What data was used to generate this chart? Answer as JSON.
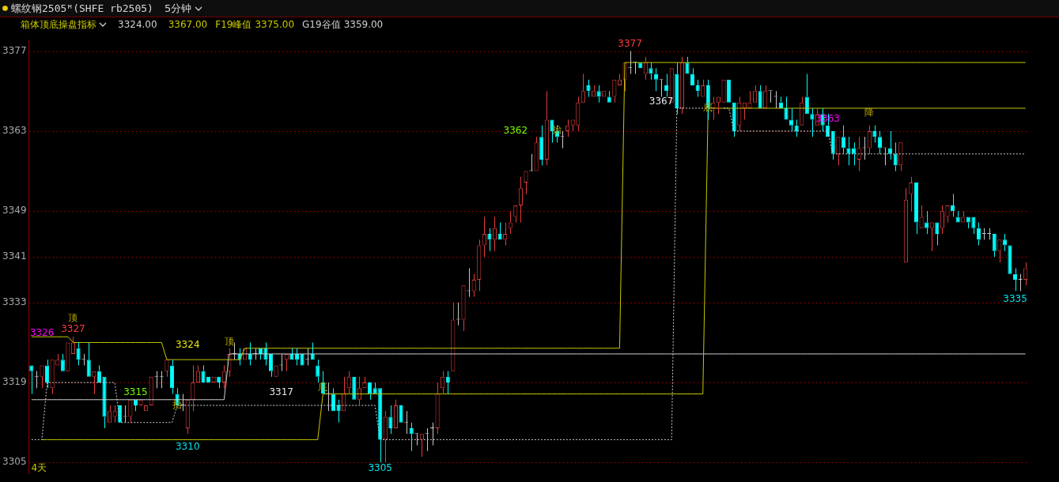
{
  "chart_data": {
    "type": "candlestick",
    "title": "螺纹钢2505ᴹ(SHFE rb2505)",
    "subtitle": "5分钟",
    "legend_title": "箱体顶底操盘指标",
    "legend": "top left",
    "categories": [
      null,
      null,
      null,
      null,
      null,
      null,
      null,
      null,
      null,
      null,
      null,
      null,
      null,
      null,
      null,
      null,
      null,
      null,
      null,
      null,
      null,
      null,
      null,
      null,
      null,
      null,
      null,
      null,
      null,
      null,
      null,
      null,
      null,
      null,
      null,
      null,
      null,
      null,
      null,
      null,
      null,
      null,
      null,
      null,
      null,
      null,
      null,
      null,
      null,
      null,
      null,
      null,
      null,
      null,
      null,
      null,
      null,
      null,
      null,
      null,
      null,
      null,
      null,
      null,
      null,
      null,
      null,
      null,
      null,
      null,
      null,
      null,
      null,
      null,
      null,
      null,
      null,
      null,
      null,
      null,
      null,
      null,
      null,
      null,
      null,
      null,
      null,
      null,
      null,
      null,
      null,
      null,
      null,
      null,
      null,
      null,
      null,
      null,
      null,
      null,
      null,
      null,
      null,
      null,
      null,
      null,
      null,
      null,
      null,
      null,
      null,
      null,
      null,
      null,
      null,
      null,
      null,
      null,
      null,
      null,
      null,
      null,
      null,
      null,
      null,
      null,
      null,
      null,
      null,
      null,
      null,
      null,
      null,
      null,
      null,
      null,
      null,
      null,
      null,
      null,
      null,
      null,
      null,
      null,
      null,
      null,
      null,
      null,
      null,
      null,
      null,
      null,
      null,
      null,
      null,
      null,
      null,
      null,
      null,
      null,
      null,
      null,
      null,
      null,
      null,
      null,
      null,
      null,
      null,
      null,
      null,
      null,
      null,
      null,
      null,
      null,
      null,
      null,
      null,
      null,
      null,
      null,
      null,
      null,
      null,
      null,
      null,
      null,
      null,
      null,
      null,
      null
    ],
    "ohlc": [
      [
        3322,
        3322,
        3317,
        3321
      ],
      [
        3320,
        3321,
        3318,
        3320
      ],
      [
        3320,
        3322,
        3318,
        3322
      ],
      [
        3322,
        3323,
        3318,
        3319
      ],
      [
        3318,
        3323,
        3317,
        3323
      ],
      [
        3322,
        3324,
        3322,
        3323
      ],
      [
        3323,
        3324,
        3321,
        3321
      ],
      [
        3321,
        3326,
        3321,
        3326
      ],
      [
        3324,
        3327,
        3324,
        3326
      ],
      [
        3325,
        3326,
        3322,
        3323
      ],
      [
        3323,
        3324,
        3322,
        3323
      ],
      [
        3323,
        3326,
        3320,
        3320
      ],
      [
        3320,
        3321,
        3317,
        3321
      ],
      [
        3321,
        3322,
        3319,
        3319
      ],
      [
        3320,
        3320,
        3311,
        3313
      ],
      [
        3312,
        3315,
        3312,
        3314
      ],
      [
        3313,
        3315,
        3312,
        3314
      ],
      [
        3315,
        3315,
        3312,
        3312
      ],
      [
        3313,
        3315,
        3312,
        3313
      ],
      [
        3313,
        3316,
        3312,
        3316
      ],
      [
        3316,
        3316,
        3314,
        3315
      ],
      [
        3315,
        3316,
        3315,
        3316
      ],
      [
        3314,
        3315,
        3314,
        3315
      ],
      [
        3315,
        3320,
        3315,
        3320
      ],
      [
        3320,
        3321,
        3318,
        3320
      ],
      [
        3320,
        3321,
        3318,
        3320
      ],
      [
        3321,
        3323,
        3320,
        3323
      ],
      [
        3322,
        3323,
        3317,
        3318
      ],
      [
        3317,
        3318,
        3315,
        3315
      ],
      [
        3315,
        3317,
        3314,
        3315
      ],
      [
        3311,
        3316,
        3310,
        3316
      ],
      [
        3316,
        3322,
        3314,
        3319
      ],
      [
        3319,
        3322,
        3319,
        3321
      ],
      [
        3321,
        3322,
        3319,
        3319
      ],
      [
        3320,
        3320,
        3319,
        3319
      ],
      [
        3319,
        3320,
        3319,
        3320
      ],
      [
        3320,
        3320,
        3318,
        3319
      ],
      [
        3319,
        3322,
        3318,
        3321
      ],
      [
        3321,
        3325,
        3320,
        3324
      ],
      [
        3324,
        3326,
        3323,
        3324
      ],
      [
        3324,
        3325,
        3322,
        3323
      ],
      [
        3323,
        3325,
        3323,
        3325
      ],
      [
        3324,
        3326,
        3322,
        3323
      ],
      [
        3324,
        3325,
        3323,
        3324
      ],
      [
        3325,
        3325,
        3323,
        3324
      ],
      [
        3325,
        3326,
        3322,
        3323
      ],
      [
        3324,
        3324,
        3320,
        3321
      ],
      [
        3320,
        3322,
        3320,
        3322
      ],
      [
        3322,
        3324,
        3321,
        3322
      ],
      [
        3323,
        3324,
        3321,
        3324
      ],
      [
        3324,
        3325,
        3323,
        3323
      ],
      [
        3324,
        3325,
        3322,
        3323
      ],
      [
        3324,
        3324,
        3322,
        3322
      ],
      [
        3323,
        3325,
        3322,
        3323
      ],
      [
        3324,
        3326,
        3323,
        3323
      ],
      [
        3322,
        3323,
        3319,
        3320
      ],
      [
        3319,
        3321,
        3317,
        3317
      ],
      [
        3317,
        3319,
        3314,
        3317
      ],
      [
        3317,
        3318,
        3314,
        3314
      ],
      [
        3315,
        3316,
        3312,
        3314
      ],
      [
        3314,
        3320,
        3314,
        3317
      ],
      [
        3318,
        3321,
        3317,
        3320
      ],
      [
        3320,
        3320,
        3316,
        3316
      ],
      [
        3316,
        3320,
        3315,
        3318
      ],
      [
        3318,
        3320,
        3318,
        3319
      ],
      [
        3319,
        3319,
        3316,
        3317
      ],
      [
        3318,
        3319,
        3317,
        3317
      ],
      [
        3318,
        3318,
        3305,
        3309
      ],
      [
        3309,
        3314,
        3305,
        3313
      ],
      [
        3313,
        3315,
        3310,
        3311
      ],
      [
        3311,
        3316,
        3311,
        3315
      ],
      [
        3315,
        3315,
        3312,
        3312
      ],
      [
        3312,
        3314,
        3310,
        3312
      ],
      [
        3311,
        3312,
        3307,
        3310
      ],
      [
        3310,
        3310,
        3308,
        3310
      ],
      [
        3309,
        3310,
        3306,
        3310
      ],
      [
        3310,
        3311,
        3307,
        3310
      ],
      [
        3311,
        3312,
        3308,
        3311
      ],
      [
        3311,
        3319,
        3310,
        3317
      ],
      [
        3318,
        3321,
        3317,
        3320
      ],
      [
        3320,
        3321,
        3317,
        3319
      ],
      [
        3321,
        3333,
        3321,
        3330
      ],
      [
        3330,
        3333,
        3329,
        3330
      ],
      [
        3330,
        3336,
        3328,
        3336
      ],
      [
        3335,
        3339,
        3334,
        3335
      ],
      [
        3335,
        3338,
        3334,
        3337
      ],
      [
        3337,
        3344,
        3335,
        3343
      ],
      [
        3343,
        3348,
        3341,
        3345
      ],
      [
        3345,
        3346,
        3342,
        3344
      ],
      [
        3344,
        3348,
        3342,
        3346
      ],
      [
        3345,
        3347,
        3344,
        3344
      ],
      [
        3344,
        3347,
        3343,
        3345
      ],
      [
        3346,
        3349,
        3345,
        3347
      ],
      [
        3348,
        3350,
        3347,
        3350
      ],
      [
        3350,
        3355,
        3347,
        3353
      ],
      [
        3354,
        3356,
        3352,
        3356
      ],
      [
        3356,
        3359,
        3356,
        3356
      ],
      [
        3356,
        3362,
        3356,
        3361
      ],
      [
        3362,
        3364,
        3357,
        3358
      ],
      [
        3358,
        3370,
        3357,
        3365
      ],
      [
        3365,
        3365,
        3361,
        3363
      ],
      [
        3363,
        3364,
        3361,
        3362
      ],
      [
        3362,
        3363,
        3360,
        3362
      ],
      [
        3363,
        3365,
        3362,
        3364
      ],
      [
        3364,
        3365,
        3363,
        3365
      ],
      [
        3364,
        3369,
        3363,
        3368
      ],
      [
        3368,
        3373,
        3368,
        3370
      ],
      [
        3371,
        3372,
        3369,
        3370
      ],
      [
        3369,
        3371,
        3369,
        3370
      ],
      [
        3370,
        3371,
        3368,
        3369
      ],
      [
        3369,
        3370,
        3369,
        3370
      ],
      [
        3369,
        3370,
        3368,
        3368
      ],
      [
        3369,
        3372,
        3368,
        3372
      ],
      [
        3371,
        3373,
        3371,
        3372
      ],
      [
        3372,
        3375,
        3370,
        3375
      ],
      [
        3374,
        3377,
        3373,
        3374
      ],
      [
        3375,
        3375,
        3373,
        3375
      ],
      [
        3375,
        3375,
        3374,
        3374
      ],
      [
        3373,
        3376,
        3372,
        3375
      ],
      [
        3374,
        3375,
        3372,
        3373
      ],
      [
        3373,
        3374,
        3370,
        3372
      ],
      [
        3372,
        3372,
        3369,
        3372
      ],
      [
        3371,
        3373,
        3369,
        3370
      ],
      [
        3368,
        3374,
        3368,
        3374
      ],
      [
        3373,
        3375,
        3366,
        3367
      ],
      [
        3367,
        3376,
        3366,
        3375
      ],
      [
        3375,
        3376,
        3373,
        3373
      ],
      [
        3373,
        3374,
        3371,
        3371
      ],
      [
        3371,
        3372,
        3369,
        3370
      ],
      [
        3369,
        3372,
        3369,
        3371
      ],
      [
        3371,
        3372,
        3365,
        3367
      ],
      [
        3367,
        3369,
        3365,
        3368
      ],
      [
        3368,
        3369,
        3366,
        3369
      ],
      [
        3368,
        3372,
        3368,
        3372
      ],
      [
        3372,
        3372,
        3368,
        3368
      ],
      [
        3368,
        3368,
        3362,
        3363
      ],
      [
        3364,
        3369,
        3363,
        3368
      ],
      [
        3367,
        3368,
        3365,
        3368
      ],
      [
        3367,
        3370,
        3367,
        3368
      ],
      [
        3368,
        3371,
        3368,
        3370
      ],
      [
        3370,
        3371,
        3367,
        3367
      ],
      [
        3367,
        3371,
        3367,
        3370
      ],
      [
        3370,
        3370,
        3368,
        3370
      ],
      [
        3369,
        3370,
        3367,
        3369
      ],
      [
        3368,
        3369,
        3367,
        3367
      ],
      [
        3367,
        3369,
        3365,
        3365
      ],
      [
        3365,
        3367,
        3363,
        3364
      ],
      [
        3364,
        3365,
        3362,
        3363
      ],
      [
        3364,
        3369,
        3364,
        3368
      ],
      [
        3369,
        3373,
        3366,
        3366
      ],
      [
        3366,
        3367,
        3362,
        3365
      ],
      [
        3364,
        3367,
        3364,
        3366
      ],
      [
        3366,
        3367,
        3363,
        3364
      ],
      [
        3364,
        3366,
        3362,
        3362
      ],
      [
        3363,
        3363,
        3358,
        3359
      ],
      [
        3359,
        3362,
        3357,
        3362
      ],
      [
        3362,
        3364,
        3359,
        3360
      ],
      [
        3360,
        3362,
        3357,
        3359
      ],
      [
        3360,
        3361,
        3357,
        3359
      ],
      [
        3358,
        3362,
        3356,
        3360
      ],
      [
        3360,
        3362,
        3358,
        3360
      ],
      [
        3360,
        3364,
        3359,
        3363
      ],
      [
        3363,
        3364,
        3361,
        3362
      ],
      [
        3362,
        3363,
        3359,
        3360
      ],
      [
        3360,
        3360,
        3357,
        3360
      ],
      [
        3360,
        3363,
        3358,
        3359
      ],
      [
        3359,
        3361,
        3356,
        3357
      ],
      [
        3357,
        3361,
        3356,
        3361
      ],
      [
        3340,
        3353,
        3340,
        3351
      ],
      [
        3352,
        3355,
        3349,
        3354
      ],
      [
        3354,
        3354,
        3345,
        3347
      ],
      [
        3346,
        3350,
        3346,
        3348
      ],
      [
        3347,
        3349,
        3345,
        3346
      ],
      [
        3346,
        3347,
        3342,
        3347
      ],
      [
        3347,
        3347,
        3343,
        3345
      ],
      [
        3346,
        3350,
        3345,
        3349
      ],
      [
        3348,
        3350,
        3347,
        3350
      ],
      [
        3350,
        3352,
        3348,
        3349
      ],
      [
        3348,
        3349,
        3347,
        3347
      ],
      [
        3347,
        3349,
        3347,
        3348
      ],
      [
        3348,
        3348,
        3346,
        3347
      ],
      [
        3348,
        3348,
        3345,
        3346
      ],
      [
        3346,
        3347,
        3343,
        3344
      ],
      [
        3345,
        3346,
        3344,
        3345
      ],
      [
        3345,
        3346,
        3344,
        3345
      ],
      [
        3345,
        3345,
        3341,
        3342
      ],
      [
        3342,
        3344,
        3340,
        3344
      ],
      [
        3344,
        3345,
        3342,
        3343
      ],
      [
        3343,
        3343,
        3338,
        3338
      ],
      [
        3338,
        3339,
        3335,
        3337
      ],
      [
        3337,
        3338,
        3335,
        3337
      ],
      [
        3337,
        3340,
        3336,
        3339
      ]
    ],
    "colors": [
      "#00ffff",
      "#c8c8c8",
      "#e03c3c",
      "#00ffff",
      "#e03c3c",
      "#e03c3c",
      "#00ffff",
      "#e03c3c",
      "#e03c3c",
      "#00ffff",
      "#c8c8c8",
      "#00ffff",
      "#e03c3c",
      "#00ffff",
      "#00ffff",
      "#e03c3c",
      "#e03c3c",
      "#00ffff",
      "#c8c8c8",
      "#e03c3c",
      "#00ffff",
      "#e03c3c",
      "#e03c3c",
      "#e03c3c",
      "#c8c8c8",
      "#c8c8c8",
      "#e03c3c",
      "#00ffff",
      "#00ffff",
      "#c8c8c8",
      "#e03c3c",
      "#e03c3c",
      "#e03c3c",
      "#00ffff",
      "#00ffff",
      "#e03c3c",
      "#00ffff",
      "#e03c3c",
      "#e03c3c",
      "#c8c8c8",
      "#00ffff",
      "#e03c3c",
      "#00ffff",
      "#c8c8c8",
      "#00ffff",
      "#00ffff",
      "#00ffff",
      "#e03c3c",
      "#c8c8c8",
      "#e03c3c",
      "#00ffff",
      "#00ffff",
      "#00ffff",
      "#c8c8c8",
      "#00ffff",
      "#00ffff",
      "#00ffff",
      "#c8c8c8",
      "#00ffff",
      "#00ffff",
      "#e03c3c",
      "#e03c3c",
      "#00ffff",
      "#e03c3c",
      "#e03c3c",
      "#00ffff",
      "#00ffff",
      "#00ffff",
      "#e03c3c",
      "#00ffff",
      "#e03c3c",
      "#00ffff",
      "#c8c8c8",
      "#00ffff",
      "#c8c8c8",
      "#e03c3c",
      "#c8c8c8",
      "#c8c8c8",
      "#e03c3c",
      "#e03c3c",
      "#00ffff",
      "#e03c3c",
      "#c8c8c8",
      "#e03c3c",
      "#c8c8c8",
      "#e03c3c",
      "#e03c3c",
      "#e03c3c",
      "#00ffff",
      "#e03c3c",
      "#00ffff",
      "#e03c3c",
      "#e03c3c",
      "#e03c3c",
      "#e03c3c",
      "#e03c3c",
      "#c8c8c8",
      "#e03c3c",
      "#00ffff",
      "#e03c3c",
      "#00ffff",
      "#00ffff",
      "#c8c8c8",
      "#e03c3c",
      "#e03c3c",
      "#e03c3c",
      "#e03c3c",
      "#00ffff",
      "#e03c3c",
      "#00ffff",
      "#e03c3c",
      "#00ffff",
      "#e03c3c",
      "#e03c3c",
      "#e03c3c",
      "#c8c8c8",
      "#c8c8c8",
      "#00ffff",
      "#e03c3c",
      "#00ffff",
      "#00ffff",
      "#c8c8c8",
      "#00ffff",
      "#e03c3c",
      "#00ffff",
      "#e03c3c",
      "#00ffff",
      "#00ffff",
      "#00ffff",
      "#e03c3c",
      "#00ffff",
      "#e03c3c",
      "#e03c3c",
      "#e03c3c",
      "#00ffff",
      "#00ffff",
      "#e03c3c",
      "#e03c3c",
      "#e03c3c",
      "#e03c3c",
      "#00ffff",
      "#e03c3c",
      "#c8c8c8",
      "#c8c8c8",
      "#00ffff",
      "#00ffff",
      "#00ffff",
      "#00ffff",
      "#e03c3c",
      "#00ffff",
      "#00ffff",
      "#e03c3c",
      "#00ffff",
      "#00ffff",
      "#00ffff",
      "#e03c3c",
      "#00ffff",
      "#00ffff",
      "#00ffff",
      "#e03c3c",
      "#c8c8c8",
      "#e03c3c",
      "#00ffff",
      "#00ffff",
      "#c8c8c8",
      "#00ffff",
      "#00ffff",
      "#e03c3c",
      "#e03c3c",
      "#e03c3c",
      "#00ffff",
      "#e03c3c",
      "#00ffff",
      "#e03c3c",
      "#00ffff",
      "#e03c3c",
      "#e03c3c",
      "#00ffff",
      "#00ffff",
      "#e03c3c",
      "#00ffff",
      "#00ffff",
      "#00ffff",
      "#c8c8c8",
      "#c8c8c8",
      "#00ffff",
      "#e03c3c",
      "#00ffff",
      "#00ffff",
      "#00ffff",
      "#c8c8c8",
      "#e03c3c"
    ],
    "series": [
      {
        "type": "line",
        "color": "#d0d0d0",
        "values": [
          3316,
          3316,
          3316,
          3316,
          3316,
          3316,
          3316,
          3316,
          3316,
          3316,
          3316,
          3316,
          3316,
          3316,
          3316,
          3316,
          3316,
          3316,
          3316,
          3316,
          3316,
          3316,
          3316,
          3316,
          3316,
          3316,
          3316,
          3316,
          3316,
          3316,
          3316,
          3316,
          3316,
          3316,
          3316,
          3316,
          3316,
          3316,
          3324,
          3324,
          3324,
          3324,
          3324,
          3324,
          3324,
          3324,
          3324,
          3324,
          3324,
          3324,
          3324,
          3324,
          3324,
          3324,
          3324,
          3324,
          3324,
          3324,
          3324,
          3324,
          3324,
          3324,
          3324,
          3324,
          3324,
          3324,
          3324,
          3324,
          3324,
          3324,
          3324,
          3324,
          3324,
          3324,
          3324,
          3324,
          3324,
          3324,
          3324,
          3324,
          3324,
          3324,
          3324,
          3324,
          3324,
          3324,
          3324,
          3324,
          3324,
          3324,
          3324,
          3324,
          3324,
          3324,
          3324,
          3324,
          3324,
          3324,
          3324,
          3324,
          3324,
          3324,
          3324,
          3324,
          3324,
          3324,
          3324,
          3324,
          3324,
          3324,
          3324,
          3324,
          3324,
          3324,
          3324,
          3324,
          3324,
          3324,
          3324,
          3324,
          3324,
          3324,
          3324,
          3324,
          3324,
          3324,
          3324,
          3324,
          3324,
          3324,
          3324,
          3324,
          3324,
          3324,
          3324,
          3324,
          3324,
          3324,
          3324,
          3324,
          3324,
          3324,
          3324,
          3324,
          3324,
          3324,
          3324,
          3324,
          3324,
          3324,
          3324,
          3324,
          3324,
          3324,
          3324,
          3324,
          3324,
          3324,
          3324,
          3324,
          3324,
          3324,
          3324,
          3324,
          3324,
          3324,
          3324,
          3324,
          3324,
          3324,
          3324,
          3324,
          3324,
          3324,
          3324,
          3324,
          3324,
          3324,
          3324,
          3324,
          3324,
          3324,
          3324,
          3324,
          3324,
          3324,
          3324,
          3324,
          3324,
          3324,
          3324,
          3324
        ]
      },
      {
        "type": "line",
        "color": "#c8c800",
        "values": [
          null,
          null,
          3309,
          3309,
          3309,
          3309,
          3309,
          3309,
          3309,
          3309,
          3309,
          3309,
          3309,
          3309,
          3309,
          3309,
          3309,
          3309,
          3309,
          3309,
          3309,
          3309,
          3309,
          3309,
          3309,
          3309,
          3309,
          3309,
          3309,
          3309,
          3309,
          3309,
          3309,
          3309,
          3309,
          3309,
          3309,
          3309,
          3309,
          3309,
          3309,
          3309,
          3309,
          3309,
          3309,
          3309,
          3309,
          3309,
          3309,
          3309,
          3309,
          3309,
          3309,
          3309,
          3309,
          3309,
          3317,
          3317,
          3317,
          3317,
          3317,
          3317,
          3317,
          3317,
          3317,
          3317,
          3317,
          3317,
          3317,
          3317,
          3317,
          3317,
          3317,
          3317,
          3317,
          3317,
          3317,
          3317,
          3317,
          3317,
          3317,
          3317,
          3317,
          3317,
          3317,
          3317,
          3317,
          3317,
          3317,
          3317,
          3317,
          3317,
          3317,
          3317,
          3317,
          3317,
          3317,
          3317,
          3317,
          3317,
          3317,
          3317,
          3317,
          3317,
          3317,
          3317,
          3317,
          3317,
          3317,
          3317,
          3317,
          3317,
          3317,
          3317,
          3317,
          3317,
          3317,
          3317,
          3317,
          3317,
          3317,
          3317,
          3317,
          3317,
          3317,
          3317,
          3317,
          3317,
          3317,
          3317,
          3367,
          3367,
          3367,
          3367,
          3367,
          3367,
          3367,
          3367,
          3367,
          3367,
          3367,
          3367,
          3367,
          3367,
          3367,
          3367,
          3367,
          3367,
          3367,
          3367,
          3367,
          3367,
          3367,
          3367,
          3367,
          3367,
          3367,
          3367,
          3367,
          3367,
          3367,
          3367,
          3367,
          3367,
          3367,
          3367,
          3367,
          3367,
          3367,
          3367,
          3367,
          3367,
          3367,
          3367,
          3367,
          3367,
          3367,
          3367,
          3367,
          3367,
          3367,
          3367,
          3367,
          3367,
          3367,
          3367,
          3367,
          3367,
          3367,
          3367,
          3367,
          3367
        ]
      },
      {
        "type": "line",
        "name": "F19峰值",
        "color": "#c8c800",
        "values": [
          3327,
          3327,
          3327,
          3327,
          3327,
          3327,
          3327,
          3327,
          3326,
          3326,
          3326,
          3326,
          3326,
          3326,
          3326,
          3326,
          3326,
          3326,
          3326,
          3326,
          3326,
          3326,
          3326,
          3326,
          3326,
          3326,
          3323,
          3323,
          3323,
          3323,
          3323,
          3323,
          3323,
          3323,
          3323,
          3323,
          3323,
          3323,
          3323,
          3323,
          3323,
          3325,
          3325,
          3325,
          3325,
          3325,
          3325,
          3325,
          3325,
          3325,
          3325,
          3325,
          3325,
          3325,
          3325,
          3325,
          3325,
          3325,
          3325,
          3325,
          3325,
          3325,
          3325,
          3325,
          3325,
          3325,
          3325,
          3325,
          3325,
          3325,
          3325,
          3325,
          3325,
          3325,
          3325,
          3325,
          3325,
          3325,
          3325,
          3325,
          3325,
          3325,
          3325,
          3325,
          3325,
          3325,
          3325,
          3325,
          3325,
          3325,
          3325,
          3325,
          3325,
          3325,
          3325,
          3325,
          3325,
          3325,
          3325,
          3325,
          3325,
          3325,
          3325,
          3325,
          3325,
          3325,
          3325,
          3325,
          3325,
          3325,
          3325,
          3325,
          3325,
          3325,
          3375,
          3375,
          3375,
          3375,
          3375,
          3375,
          3375,
          3375,
          3375,
          3375,
          3375,
          3375,
          3375,
          3375,
          3375,
          3375,
          3375,
          3375,
          3375,
          3375,
          3375,
          3375,
          3375,
          3375,
          3375,
          3375,
          3375,
          3375,
          3375,
          3375,
          3375,
          3375,
          3375,
          3375,
          3375,
          3375,
          3375,
          3375,
          3375,
          3375,
          3375,
          3375,
          3375,
          3375,
          3375,
          3375,
          3375,
          3375,
          3375,
          3375,
          3375,
          3375,
          3375,
          3375,
          3375,
          3375,
          3375,
          3375,
          3375,
          3375,
          3375,
          3375,
          3375,
          3375,
          3375,
          3375,
          3375,
          3375,
          3375,
          3375,
          3375,
          3375,
          3375,
          3375,
          3375,
          3375,
          3375,
          3375
        ]
      },
      {
        "type": "line",
        "name": "G19谷值",
        "color": "#d0d0d0",
        "line_style": "dotted",
        "values": [
          3309,
          3309,
          3309,
          3319,
          3319,
          3319,
          3319,
          3319,
          3319,
          3319,
          3319,
          3319,
          3319,
          3319,
          3319,
          3319,
          3319,
          3312,
          3312,
          3312,
          3312,
          3312,
          3312,
          3312,
          3312,
          3312,
          3312,
          3312,
          3315,
          3315,
          3315,
          3315,
          3315,
          3315,
          3315,
          3315,
          3315,
          3315,
          3315,
          3315,
          3315,
          3315,
          3315,
          3315,
          3315,
          3315,
          3315,
          3315,
          3315,
          3315,
          3315,
          3315,
          3315,
          3315,
          3315,
          3315,
          3315,
          3315,
          3315,
          3315,
          3315,
          3315,
          3315,
          3315,
          3315,
          3315,
          3315,
          3309,
          3309,
          3309,
          3309,
          3309,
          3309,
          3309,
          3309,
          3309,
          3309,
          3309,
          3309,
          3309,
          3309,
          3309,
          3309,
          3309,
          3309,
          3309,
          3309,
          3309,
          3309,
          3309,
          3309,
          3309,
          3309,
          3309,
          3309,
          3309,
          3309,
          3309,
          3309,
          3309,
          3309,
          3309,
          3309,
          3309,
          3309,
          3309,
          3309,
          3309,
          3309,
          3309,
          3309,
          3309,
          3309,
          3309,
          3309,
          3309,
          3309,
          3309,
          3309,
          3309,
          3309,
          3309,
          3309,
          3309,
          3367,
          3367,
          3367,
          3367,
          3367,
          3367,
          3367,
          null,
          null,
          3367,
          3367,
          3363,
          3363,
          3363,
          3363,
          3363,
          3363,
          3363,
          3363,
          3363,
          3363,
          3363,
          3363,
          3363,
          3363,
          3363,
          3363,
          3363,
          3363,
          3363,
          3359,
          3359,
          3359,
          3359,
          3359,
          3359,
          3359,
          3359,
          3359,
          3359,
          3359,
          3359,
          3359,
          3359,
          3359,
          3359,
          3359,
          3359,
          3359,
          3359,
          3359,
          3359,
          3359,
          3359,
          3359,
          3359,
          3359,
          3359,
          3359,
          3359,
          3359,
          3359,
          3359,
          3359,
          3359,
          3359,
          3359,
          3359
        ]
      }
    ],
    "ylim": [
      3303,
      3379
    ],
    "yticks": [
      3305,
      3319,
      3333,
      3341,
      3349,
      3363,
      3377
    ],
    "grid": "y",
    "tick_labels": "y",
    "marker": "none",
    "annotations": [
      "3326",
      {
        "text": "3327",
        "y": 3327
      },
      {
        "text": "顶",
        "y": 3327
      },
      "3324",
      "顶",
      {
        "text": "3315",
        "y": 3315
      },
      {
        "text": "抬",
        "y": 3315
      },
      {
        "text": "3310",
        "y": 3310
      },
      "3317",
      {
        "text": "底",
        "y": 3318
      },
      {
        "text": "3305",
        "y": 3305
      },
      "3362",
      "抬",
      {
        "text": "3377",
        "y": 3377
      },
      "3367",
      {
        "text": "底",
        "y": 3367
      },
      {
        "text": "3363",
        "y": 3363
      },
      "降",
      {
        "text": "3335",
        "y": 3335
      },
      "4天",
      "3324.00",
      "3367.00",
      "3375.00",
      "3359.00"
    ]
  }
}
